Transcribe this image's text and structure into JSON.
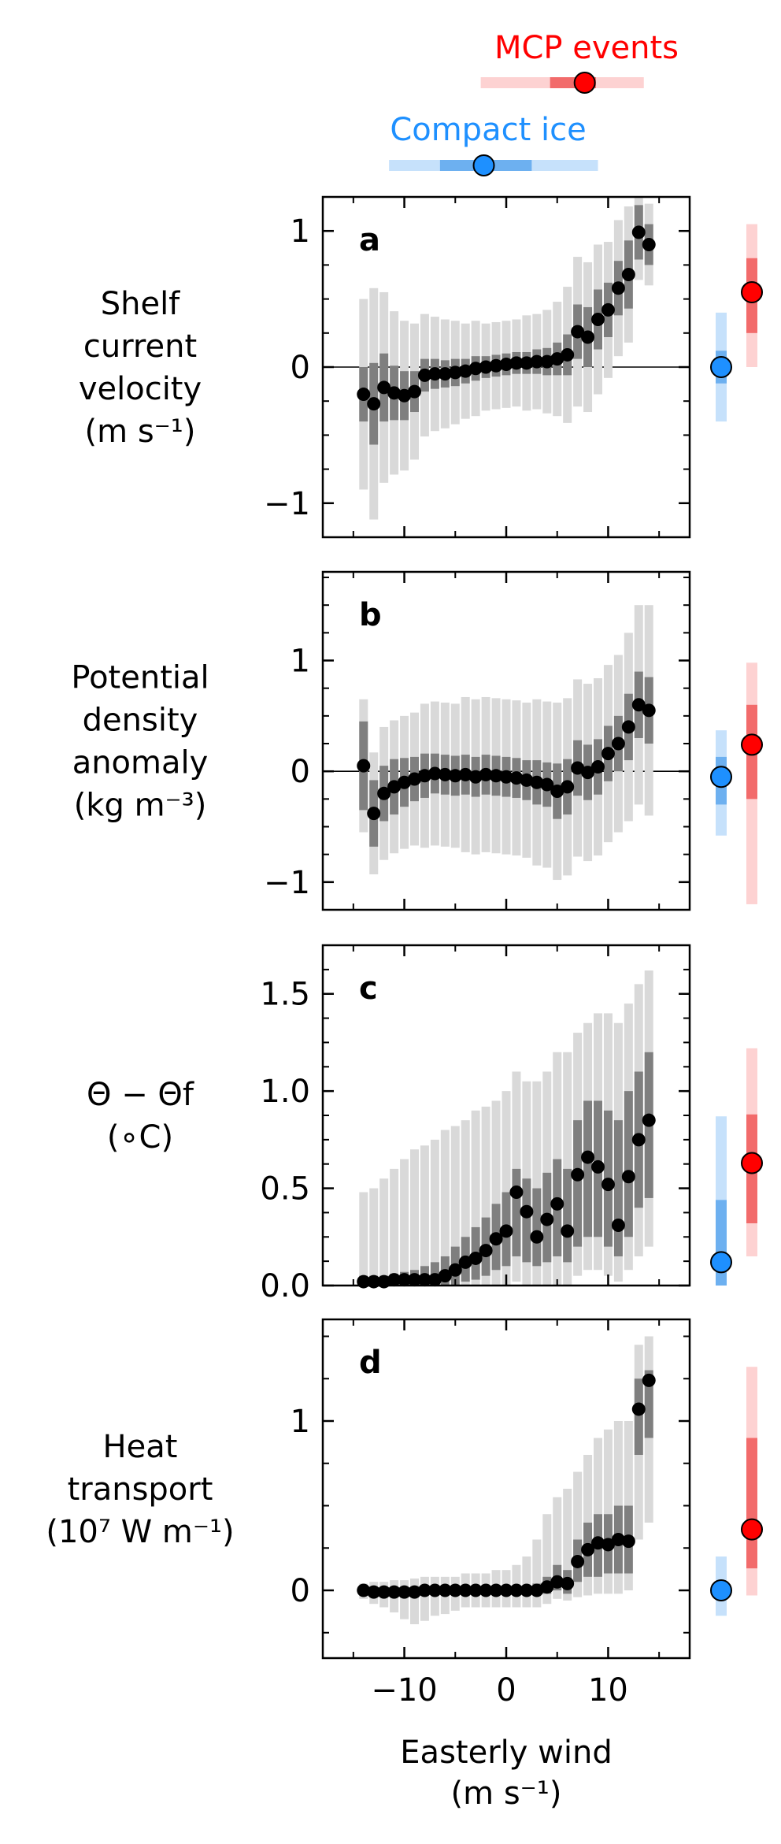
{
  "colors": {
    "mcp": "#ff0000",
    "mcp_dark": "#f26b6b",
    "mcp_light": "#fdd2d2",
    "ice": "#1e90ff",
    "ice_dark": "#6db0f0",
    "ice_light": "#c6e1fb",
    "bin_dark": "#7f7f7f",
    "bin_light": "#d9d9d9",
    "point": "#000000"
  },
  "top_legend": {
    "mcp_label": "MCP events",
    "ice_label": "Compact ice",
    "mcp_wind": {
      "median": 7.7,
      "iqr": [
        4.3,
        8.8
      ],
      "range": [
        -2.5,
        13.5
      ]
    },
    "ice_wind": {
      "median": -2.2,
      "iqr": [
        -6.5,
        2.5
      ],
      "range": [
        -11.5,
        9.0
      ]
    }
  },
  "xaxis": {
    "label_line1": "Easterly wind",
    "label_line2": "(m s⁻¹)",
    "ticks": [
      -10,
      0,
      10
    ],
    "tick_labels": [
      "−10",
      "0",
      "10"
    ],
    "xlim": [
      -18,
      18
    ]
  },
  "chart_data": [
    {
      "type": "scatter",
      "panel": "a",
      "ylabel_lines": [
        "Shelf",
        "current",
        "velocity",
        "(m s⁻¹)"
      ],
      "ylim": [
        -1.25,
        1.25
      ],
      "yticks": [
        -1,
        0,
        1
      ],
      "ytick_labels": [
        "−1",
        "0",
        "1"
      ],
      "zero_line": true,
      "x": [
        -14,
        -13,
        -12,
        -11,
        -10,
        -9,
        -8,
        -7,
        -6,
        -5,
        -4,
        -3,
        -2,
        -1,
        0,
        1,
        2,
        3,
        4,
        5,
        6,
        7,
        8,
        9,
        10,
        11,
        12,
        13,
        14
      ],
      "y": [
        -0.2,
        -0.27,
        -0.15,
        -0.19,
        -0.21,
        -0.18,
        -0.06,
        -0.05,
        -0.05,
        -0.04,
        -0.03,
        -0.01,
        0.0,
        0.01,
        0.02,
        0.03,
        0.03,
        0.04,
        0.04,
        0.06,
        0.09,
        0.26,
        0.22,
        0.35,
        0.42,
        0.58,
        0.68,
        0.99,
        0.9
      ],
      "iqr_half": [
        0.2,
        0.3,
        0.25,
        0.2,
        0.18,
        0.15,
        0.12,
        0.11,
        0.1,
        0.1,
        0.09,
        0.09,
        0.08,
        0.08,
        0.08,
        0.08,
        0.08,
        0.09,
        0.1,
        0.12,
        0.15,
        0.2,
        0.22,
        0.22,
        0.2,
        0.2,
        0.25,
        0.2,
        0.15
      ],
      "range_half": [
        0.7,
        0.85,
        0.7,
        0.6,
        0.55,
        0.5,
        0.45,
        0.42,
        0.4,
        0.38,
        0.35,
        0.35,
        0.32,
        0.32,
        0.32,
        0.32,
        0.35,
        0.35,
        0.38,
        0.42,
        0.5,
        0.55,
        0.55,
        0.55,
        0.5,
        0.5,
        0.5,
        0.35,
        0.3
      ],
      "mcp": {
        "median": 0.55,
        "iqr": [
          0.25,
          0.8
        ],
        "range": [
          0.0,
          1.05
        ]
      },
      "ice": {
        "median": 0.0,
        "iqr": [
          -0.12,
          0.12
        ],
        "range": [
          -0.4,
          0.4
        ]
      }
    },
    {
      "type": "scatter",
      "panel": "b",
      "ylabel_lines": [
        "Potential",
        "density",
        "anomaly",
        "(kg m⁻³)"
      ],
      "ylim": [
        -1.25,
        1.8
      ],
      "yticks": [
        -1,
        0,
        1
      ],
      "ytick_labels": [
        "−1",
        "0",
        "1"
      ],
      "zero_line": true,
      "x": [
        -14,
        -13,
        -12,
        -11,
        -10,
        -9,
        -8,
        -7,
        -6,
        -5,
        -4,
        -3,
        -2,
        -1,
        0,
        1,
        2,
        3,
        4,
        5,
        6,
        7,
        8,
        9,
        10,
        11,
        12,
        13,
        14
      ],
      "y": [
        0.05,
        -0.38,
        -0.2,
        -0.14,
        -0.1,
        -0.07,
        -0.04,
        -0.02,
        -0.03,
        -0.04,
        -0.03,
        -0.05,
        -0.03,
        -0.04,
        -0.05,
        -0.06,
        -0.08,
        -0.1,
        -0.12,
        -0.18,
        -0.14,
        0.03,
        -0.01,
        0.04,
        0.16,
        0.25,
        0.4,
        0.6,
        0.55
      ],
      "iqr_half": [
        0.4,
        0.3,
        0.25,
        0.25,
        0.22,
        0.2,
        0.2,
        0.18,
        0.18,
        0.18,
        0.18,
        0.18,
        0.18,
        0.18,
        0.18,
        0.18,
        0.18,
        0.2,
        0.2,
        0.25,
        0.25,
        0.25,
        0.25,
        0.25,
        0.25,
        0.25,
        0.3,
        0.3,
        0.3
      ],
      "range_half": [
        0.6,
        0.55,
        0.6,
        0.6,
        0.6,
        0.6,
        0.65,
        0.65,
        0.65,
        0.65,
        0.7,
        0.7,
        0.7,
        0.7,
        0.7,
        0.7,
        0.7,
        0.75,
        0.75,
        0.8,
        0.8,
        0.8,
        0.8,
        0.8,
        0.8,
        0.8,
        0.85,
        0.9,
        0.95
      ],
      "mcp": {
        "median": 0.24,
        "iqr": [
          -0.25,
          0.6
        ],
        "range": [
          -1.2,
          0.98
        ]
      },
      "ice": {
        "median": -0.05,
        "iqr": [
          -0.3,
          0.13
        ],
        "range": [
          -0.58,
          0.37
        ]
      }
    },
    {
      "type": "scatter",
      "panel": "c",
      "ylabel_lines": [
        "Θ − Θf",
        "(∘C)"
      ],
      "ylim": [
        0.0,
        1.75
      ],
      "yticks": [
        0.0,
        0.5,
        1.0,
        1.5
      ],
      "ytick_labels": [
        "0.0",
        "0.5",
        "1.0",
        "1.5"
      ],
      "zero_line": false,
      "x": [
        -14,
        -13,
        -12,
        -11,
        -10,
        -9,
        -8,
        -7,
        -6,
        -5,
        -4,
        -3,
        -2,
        -1,
        0,
        1,
        2,
        3,
        4,
        5,
        6,
        7,
        8,
        9,
        10,
        11,
        12,
        13,
        14
      ],
      "y": [
        0.02,
        0.02,
        0.02,
        0.03,
        0.03,
        0.03,
        0.03,
        0.03,
        0.05,
        0.08,
        0.12,
        0.14,
        0.18,
        0.24,
        0.28,
        0.48,
        0.38,
        0.25,
        0.34,
        0.42,
        0.28,
        0.57,
        0.66,
        0.61,
        0.52,
        0.31,
        0.56,
        0.75,
        0.85
      ],
      "iqr_lo": [
        0.0,
        0.0,
        0.0,
        0.0,
        0.0,
        0.0,
        0.0,
        0.0,
        0.0,
        0.0,
        0.02,
        0.03,
        0.05,
        0.08,
        0.1,
        0.15,
        0.12,
        0.1,
        0.12,
        0.15,
        0.12,
        0.2,
        0.25,
        0.25,
        0.2,
        0.15,
        0.25,
        0.4,
        0.45
      ],
      "iqr_hi": [
        0.05,
        0.05,
        0.05,
        0.06,
        0.07,
        0.08,
        0.1,
        0.12,
        0.15,
        0.2,
        0.25,
        0.3,
        0.35,
        0.42,
        0.48,
        0.6,
        0.55,
        0.5,
        0.58,
        0.65,
        0.6,
        0.85,
        0.95,
        0.95,
        0.9,
        0.85,
        1.0,
        1.1,
        1.2
      ],
      "range_lo": [
        0.0,
        0.0,
        0.0,
        0.0,
        0.0,
        0.0,
        0.0,
        0.0,
        0.0,
        0.0,
        0.0,
        0.0,
        0.0,
        0.0,
        0.0,
        0.02,
        0.0,
        0.0,
        0.0,
        0.0,
        0.0,
        0.05,
        0.08,
        0.08,
        0.05,
        0.02,
        0.08,
        0.15,
        0.2
      ],
      "range_hi": [
        0.48,
        0.5,
        0.55,
        0.6,
        0.65,
        0.7,
        0.72,
        0.75,
        0.8,
        0.82,
        0.85,
        0.9,
        0.92,
        0.95,
        1.0,
        1.1,
        1.05,
        1.05,
        1.1,
        1.2,
        1.2,
        1.3,
        1.35,
        1.4,
        1.4,
        1.35,
        1.45,
        1.55,
        1.62
      ],
      "mcp": {
        "median": 0.63,
        "iqr": [
          0.32,
          0.88
        ],
        "range": [
          0.15,
          1.22
        ]
      },
      "ice": {
        "median": 0.12,
        "iqr": [
          0.0,
          0.44
        ],
        "range": [
          0.0,
          0.87
        ]
      }
    },
    {
      "type": "scatter",
      "panel": "d",
      "ylabel_lines": [
        "Heat",
        "transport",
        "(10⁷ W m⁻¹)"
      ],
      "ylim": [
        -0.4,
        1.6
      ],
      "yticks": [
        0,
        1
      ],
      "ytick_labels": [
        "0",
        "1"
      ],
      "zero_line": false,
      "x": [
        -14,
        -13,
        -12,
        -11,
        -10,
        -9,
        -8,
        -7,
        -6,
        -5,
        -4,
        -3,
        -2,
        -1,
        0,
        1,
        2,
        3,
        4,
        5,
        6,
        7,
        8,
        9,
        10,
        11,
        12,
        13,
        14
      ],
      "y": [
        0.0,
        -0.01,
        -0.01,
        -0.01,
        -0.01,
        -0.01,
        0.0,
        0.0,
        0.0,
        0.0,
        0.0,
        0.0,
        0.0,
        0.0,
        0.0,
        0.0,
        0.0,
        0.0,
        0.02,
        0.05,
        0.04,
        0.17,
        0.24,
        0.28,
        0.27,
        0.3,
        0.29,
        1.07,
        1.24
      ],
      "iqr_lo": [
        -0.02,
        -0.03,
        -0.03,
        -0.04,
        -0.04,
        -0.04,
        -0.03,
        -0.03,
        -0.03,
        -0.03,
        -0.03,
        -0.03,
        -0.03,
        -0.03,
        -0.03,
        -0.03,
        -0.03,
        -0.02,
        -0.02,
        0.0,
        -0.02,
        0.05,
        0.08,
        0.08,
        0.1,
        0.1,
        0.1,
        0.8,
        0.9
      ],
      "iqr_hi": [
        0.02,
        0.02,
        0.02,
        0.02,
        0.02,
        0.02,
        0.02,
        0.02,
        0.02,
        0.02,
        0.02,
        0.02,
        0.02,
        0.02,
        0.02,
        0.03,
        0.03,
        0.04,
        0.08,
        0.15,
        0.12,
        0.3,
        0.4,
        0.45,
        0.45,
        0.5,
        0.5,
        1.25,
        1.3
      ],
      "range_lo": [
        -0.05,
        -0.08,
        -0.1,
        -0.13,
        -0.17,
        -0.2,
        -0.18,
        -0.15,
        -0.14,
        -0.12,
        -0.1,
        -0.1,
        -0.1,
        -0.1,
        -0.1,
        -0.1,
        -0.1,
        -0.1,
        -0.08,
        -0.05,
        -0.06,
        -0.04,
        -0.03,
        -0.02,
        -0.02,
        -0.02,
        0.0,
        0.3,
        0.4
      ],
      "range_hi": [
        0.04,
        0.05,
        0.05,
        0.06,
        0.06,
        0.07,
        0.08,
        0.08,
        0.08,
        0.08,
        0.1,
        0.1,
        0.1,
        0.12,
        0.12,
        0.15,
        0.2,
        0.3,
        0.45,
        0.55,
        0.6,
        0.7,
        0.8,
        0.9,
        0.95,
        1.0,
        1.0,
        1.45,
        1.5
      ],
      "mcp": {
        "median": 0.36,
        "iqr": [
          0.13,
          0.9
        ],
        "range": [
          -0.03,
          1.32
        ]
      },
      "ice": {
        "median": 0.0,
        "iqr": [
          -0.05,
          0.05
        ],
        "range": [
          -0.15,
          0.2
        ]
      }
    }
  ]
}
